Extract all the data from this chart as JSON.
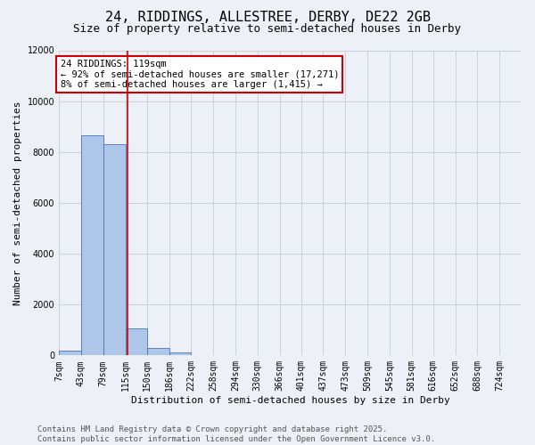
{
  "title_line1": "24, RIDDINGS, ALLESTREE, DERBY, DE22 2GB",
  "title_line2": "Size of property relative to semi-detached houses in Derby",
  "xlabel": "Distribution of semi-detached houses by size in Derby",
  "ylabel": "Number of semi-detached properties",
  "footer_line1": "Contains HM Land Registry data © Crown copyright and database right 2025.",
  "footer_line2": "Contains public sector information licensed under the Open Government Licence v3.0.",
  "annotation_line1": "24 RIDDINGS: 119sqm",
  "annotation_line2": "← 92% of semi-detached houses are smaller (17,271)",
  "annotation_line3": "8% of semi-detached houses are larger (1,415) →",
  "bin_labels": [
    "7sqm",
    "43sqm",
    "79sqm",
    "115sqm",
    "150sqm",
    "186sqm",
    "222sqm",
    "258sqm",
    "294sqm",
    "330sqm",
    "366sqm",
    "401sqm",
    "437sqm",
    "473sqm",
    "509sqm",
    "545sqm",
    "581sqm",
    "616sqm",
    "652sqm",
    "688sqm",
    "724sqm"
  ],
  "bin_edges": [
    7,
    43,
    79,
    115,
    150,
    186,
    222,
    258,
    294,
    330,
    366,
    401,
    437,
    473,
    509,
    545,
    581,
    616,
    652,
    688,
    724,
    760
  ],
  "bar_values": [
    200,
    8650,
    8300,
    1050,
    300,
    100,
    20,
    10,
    0,
    0,
    0,
    0,
    0,
    0,
    0,
    0,
    0,
    0,
    0,
    0,
    0
  ],
  "bar_color": "#aec6e8",
  "bar_edge_color": "#4472c4",
  "grid_color": "#c8d0dc",
  "vline_color": "#cc0000",
  "vline_x": 119,
  "annotation_box_color": "#cc0000",
  "ylim": [
    0,
    12000
  ],
  "yticks": [
    0,
    2000,
    4000,
    6000,
    8000,
    10000,
    12000
  ],
  "background_color": "#edf1f7",
  "title_fontsize": 11,
  "subtitle_fontsize": 9,
  "axis_label_fontsize": 8,
  "tick_fontsize": 7,
  "annotation_fontsize": 7.5,
  "footer_fontsize": 6.5
}
